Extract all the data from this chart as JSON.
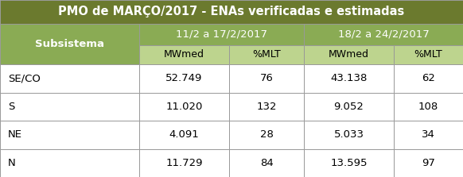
{
  "title": "PMO de MARÇO/2017 - ENAs verificadas e estimadas",
  "title_bg": "#6b7a2e",
  "title_color": "#ffffff",
  "header1_bg": "#8aab54",
  "header2_bg": "#bdd48e",
  "subsistema_color": "#ffffff",
  "period1": "11/2 a 17/2/2017",
  "period2": "18/2 a 24/2/2017",
  "col_headers": [
    "MWmed",
    "%MLT",
    "MWmed",
    "%MLT"
  ],
  "row_labels": [
    "SE/CO",
    "S",
    "NE",
    "N"
  ],
  "table_data": [
    [
      "52.749",
      "76",
      "43.138",
      "62"
    ],
    [
      "11.020",
      "132",
      "9.052",
      "108"
    ],
    [
      "4.091",
      "28",
      "5.033",
      "34"
    ],
    [
      "11.729",
      "84",
      "13.595",
      "97"
    ]
  ],
  "edge_color": "#999999",
  "title_fontsize": 10.5,
  "header_fontsize": 9,
  "data_fontsize": 9.5,
  "label_fontsize": 9.5
}
